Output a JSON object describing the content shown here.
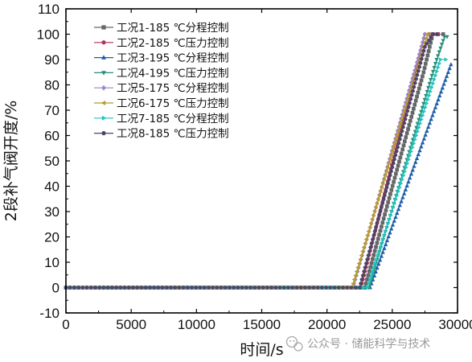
{
  "chart_data": {
    "type": "line",
    "title": "",
    "xlabel": "时间/s",
    "ylabel": "2段补气阀开度/%",
    "xlim": [
      0,
      30000
    ],
    "ylim": [
      -10,
      110
    ],
    "xticks": [
      0,
      5000,
      10000,
      15000,
      20000,
      25000,
      30000
    ],
    "yticks": [
      -10,
      0,
      10,
      20,
      30,
      40,
      50,
      60,
      70,
      80,
      90,
      100,
      110
    ],
    "grid": false,
    "legend_position": "top-left",
    "series": [
      {
        "name": "工况1-185 ℃分程控制",
        "color": "#666666",
        "marker": "square",
        "points": [
          [
            0,
            0
          ],
          [
            22900,
            0
          ],
          [
            27400,
            85
          ],
          [
            28100,
            100
          ],
          [
            28900,
            100
          ]
        ]
      },
      {
        "name": "工况2-185 ℃压力控制",
        "color": "#b22f5e",
        "marker": "circle",
        "points": [
          [
            0,
            0
          ],
          [
            22600,
            0
          ],
          [
            27500,
            100
          ],
          [
            28500,
            100
          ]
        ]
      },
      {
        "name": "工况3-195 ℃分程控制",
        "color": "#1b5fa8",
        "marker": "triangle-up",
        "points": [
          [
            0,
            0
          ],
          [
            23300,
            0
          ],
          [
            29500,
            88
          ]
        ]
      },
      {
        "name": "工况4-195 ℃压力控制",
        "color": "#2a8e7a",
        "marker": "triangle-down",
        "points": [
          [
            0,
            0
          ],
          [
            23200,
            0
          ],
          [
            28400,
            90
          ],
          [
            29000,
            99
          ],
          [
            29200,
            99
          ]
        ]
      },
      {
        "name": "工况5-175 ℃分程控制",
        "color": "#9b86c7",
        "marker": "diamond",
        "points": [
          [
            0,
            0
          ],
          [
            22000,
            0
          ],
          [
            27500,
            100
          ],
          [
            28000,
            100
          ]
        ]
      },
      {
        "name": "工况6-175 ℃压力控制",
        "color": "#b99a2c",
        "marker": "triangle-left",
        "points": [
          [
            0,
            0
          ],
          [
            21900,
            0
          ],
          [
            27700,
            100
          ],
          [
            28000,
            100
          ]
        ]
      },
      {
        "name": "工况7-185 ℃分程控制",
        "color": "#1fc4be",
        "marker": "triangle-right",
        "points": [
          [
            0,
            0
          ],
          [
            23100,
            0
          ],
          [
            28700,
            90
          ],
          [
            29100,
            90
          ]
        ]
      },
      {
        "name": "工况8-185 ℃压力控制",
        "color": "#4d4466",
        "marker": "hexagon",
        "points": [
          [
            0,
            0
          ],
          [
            22500,
            0
          ],
          [
            27500,
            95
          ],
          [
            28100,
            100
          ],
          [
            28400,
            100
          ]
        ]
      }
    ]
  },
  "watermark": {
    "text": "公众号 · 储能科学与技术",
    "icon": "wechat-icon"
  }
}
